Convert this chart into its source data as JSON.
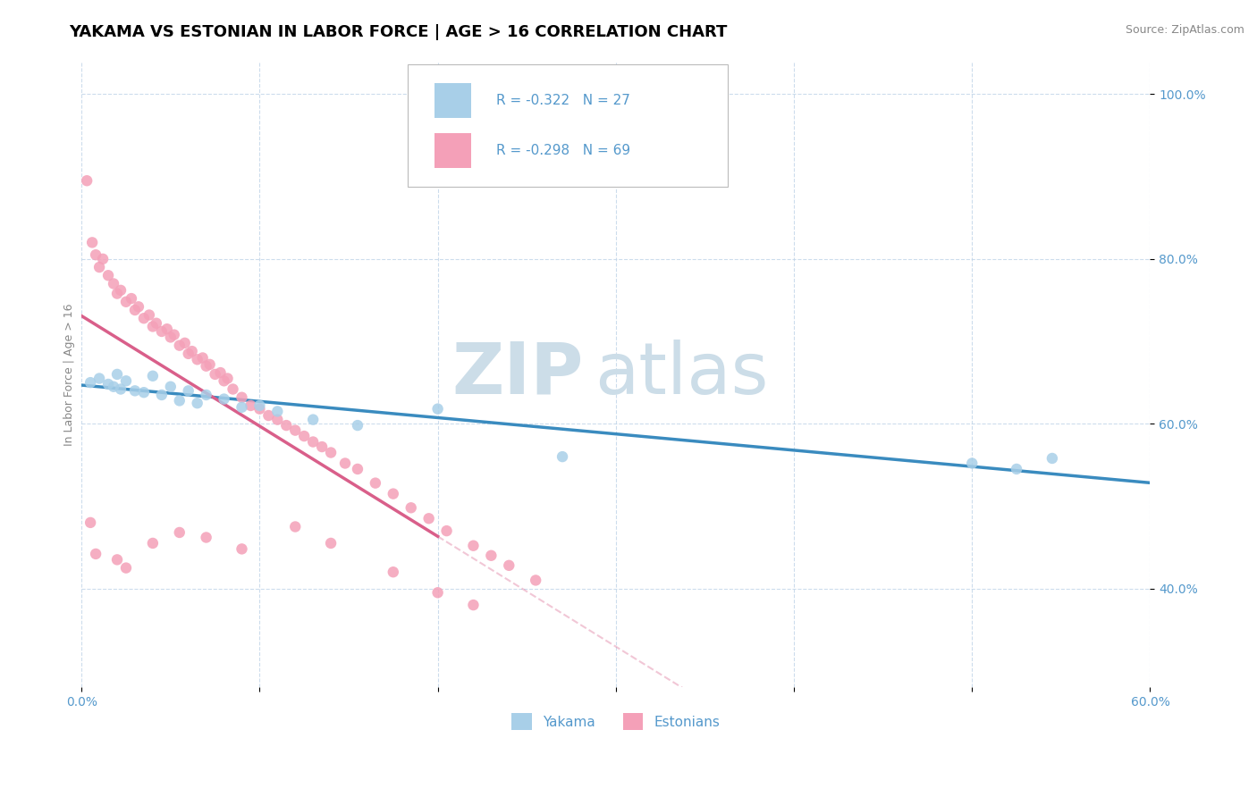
{
  "title": "YAKAMA VS ESTONIAN IN LABOR FORCE | AGE > 16 CORRELATION CHART",
  "source_text": "Source: ZipAtlas.com",
  "ylabel_label": "In Labor Force | Age > 16",
  "xlim": [
    0.0,
    0.6
  ],
  "ylim": [
    0.28,
    1.04
  ],
  "yakama_R": -0.322,
  "yakama_N": 27,
  "estonian_R": -0.298,
  "estonian_N": 69,
  "yakama_color": "#a8cfe8",
  "estonian_color": "#f4a0b8",
  "yakama_line_color": "#3a8bbf",
  "estonian_line_color": "#d95f8a",
  "watermark_color": "#ccdde8",
  "legend_yakama": "Yakama",
  "legend_estonian": "Estonians",
  "tick_color": "#5599cc",
  "title_fontsize": 13,
  "axis_label_fontsize": 9,
  "tick_fontsize": 10,
  "legend_fontsize": 11,
  "yakama_x": [
    0.005,
    0.01,
    0.015,
    0.018,
    0.02,
    0.022,
    0.025,
    0.03,
    0.035,
    0.04,
    0.045,
    0.05,
    0.055,
    0.06,
    0.065,
    0.07,
    0.08,
    0.09,
    0.1,
    0.11,
    0.13,
    0.155,
    0.2,
    0.27,
    0.5,
    0.525,
    0.545
  ],
  "yakama_y": [
    0.65,
    0.655,
    0.648,
    0.645,
    0.66,
    0.642,
    0.652,
    0.64,
    0.638,
    0.658,
    0.635,
    0.645,
    0.628,
    0.64,
    0.625,
    0.635,
    0.63,
    0.62,
    0.622,
    0.615,
    0.605,
    0.598,
    0.618,
    0.56,
    0.552,
    0.545,
    0.558
  ],
  "estonian_x": [
    0.003,
    0.006,
    0.008,
    0.01,
    0.012,
    0.015,
    0.018,
    0.02,
    0.022,
    0.025,
    0.028,
    0.03,
    0.032,
    0.035,
    0.038,
    0.04,
    0.042,
    0.045,
    0.048,
    0.05,
    0.052,
    0.055,
    0.058,
    0.06,
    0.062,
    0.065,
    0.068,
    0.07,
    0.072,
    0.075,
    0.078,
    0.08,
    0.082,
    0.085,
    0.09,
    0.095,
    0.1,
    0.105,
    0.11,
    0.115,
    0.12,
    0.125,
    0.13,
    0.135,
    0.14,
    0.148,
    0.155,
    0.165,
    0.175,
    0.185,
    0.195,
    0.205,
    0.22,
    0.23,
    0.24,
    0.255,
    0.005,
    0.008,
    0.02,
    0.025,
    0.04,
    0.055,
    0.07,
    0.09,
    0.12,
    0.14,
    0.175,
    0.2,
    0.22
  ],
  "estonian_y": [
    0.895,
    0.82,
    0.805,
    0.79,
    0.8,
    0.78,
    0.77,
    0.758,
    0.762,
    0.748,
    0.752,
    0.738,
    0.742,
    0.728,
    0.732,
    0.718,
    0.722,
    0.712,
    0.715,
    0.705,
    0.708,
    0.695,
    0.698,
    0.685,
    0.688,
    0.678,
    0.68,
    0.67,
    0.672,
    0.66,
    0.662,
    0.652,
    0.655,
    0.642,
    0.632,
    0.622,
    0.618,
    0.61,
    0.605,
    0.598,
    0.592,
    0.585,
    0.578,
    0.572,
    0.565,
    0.552,
    0.545,
    0.528,
    0.515,
    0.498,
    0.485,
    0.47,
    0.452,
    0.44,
    0.428,
    0.41,
    0.48,
    0.442,
    0.435,
    0.425,
    0.455,
    0.468,
    0.462,
    0.448,
    0.475,
    0.455,
    0.42,
    0.395,
    0.38
  ]
}
